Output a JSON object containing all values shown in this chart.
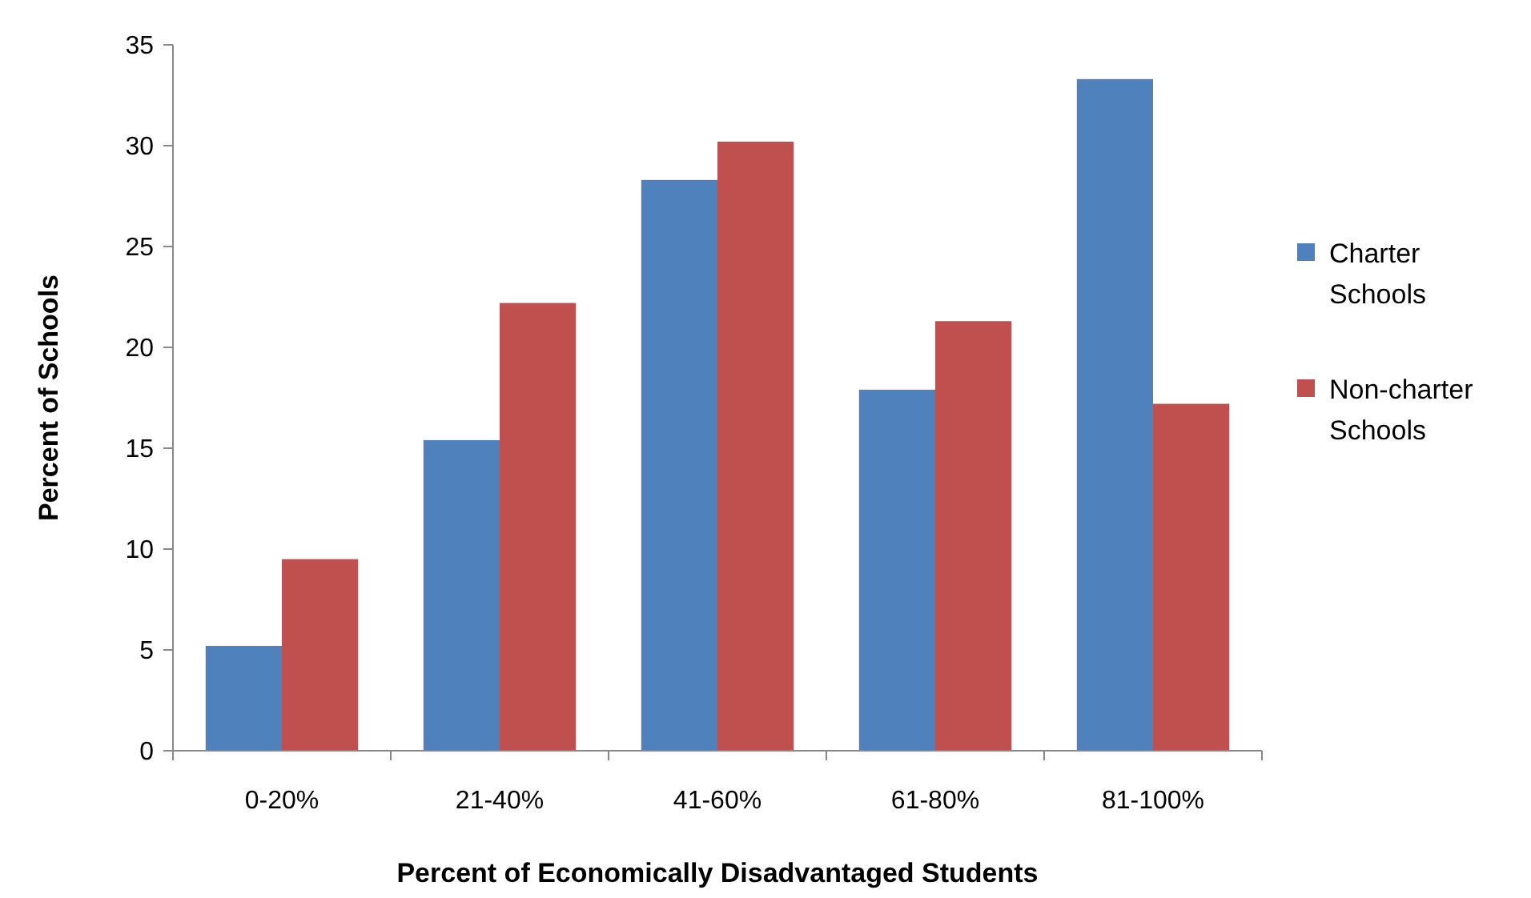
{
  "chart_data": {
    "type": "bar",
    "xlabel": "Percent of Economically Disadvantaged Students",
    "ylabel": "Percent of Schools",
    "categories": [
      "0-20%",
      "21-40%",
      "41-60%",
      "61-80%",
      "81-100%"
    ],
    "series": [
      {
        "name": "Charter Schools",
        "color": "#4f81bd",
        "values": [
          5.2,
          15.4,
          28.3,
          17.9,
          33.3
        ]
      },
      {
        "name": "Non-charter Schools",
        "color": "#c0504d",
        "values": [
          9.5,
          22.2,
          30.2,
          21.3,
          17.2
        ]
      }
    ],
    "ylim": [
      0,
      35
    ],
    "yticks": [
      0,
      5,
      10,
      15,
      20,
      25,
      30,
      35
    ],
    "grid": false,
    "legend": "right"
  }
}
